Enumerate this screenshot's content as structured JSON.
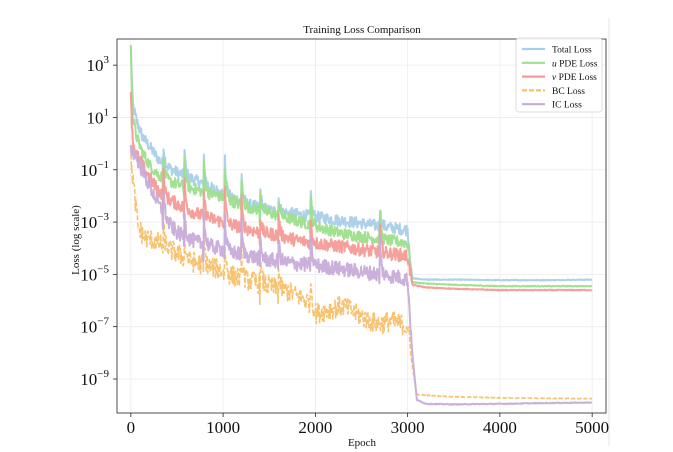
{
  "chart_data": {
    "type": "line",
    "title": "Training Loss Comparison",
    "xlabel": "Epoch",
    "ylabel": "Loss (log scale)",
    "yscale": "log",
    "xlim": [
      -150,
      5150
    ],
    "ylim_log10": [
      -10.3,
      4.0
    ],
    "xticks": [
      0,
      1000,
      2000,
      3000,
      4000,
      5000
    ],
    "xtick_labels": [
      "0",
      "1000",
      "2000",
      "3000",
      "4000",
      "5000"
    ],
    "yticks_log10": [
      3,
      1,
      -1,
      -3,
      -5,
      -7,
      -9
    ],
    "ytick_labels": [
      {
        "base": "10",
        "exp": "3"
      },
      {
        "base": "10",
        "exp": "1"
      },
      {
        "base": "10",
        "exp": "−1"
      },
      {
        "base": "10",
        "exp": "−3"
      },
      {
        "base": "10",
        "exp": "−5"
      },
      {
        "base": "10",
        "exp": "−7"
      },
      {
        "base": "10",
        "exp": "−9"
      }
    ],
    "grid": true,
    "legend_position": "top-right",
    "series": [
      {
        "name": "Total Loss",
        "label_parts": [
          "",
          "Total Loss"
        ],
        "color": "#a9cfe8",
        "dash": false,
        "points_log10": [
          [
            0,
            3.7
          ],
          [
            20,
            1.5
          ],
          [
            60,
            0.9
          ],
          [
            120,
            0.3
          ],
          [
            200,
            -0.1
          ],
          [
            300,
            -0.6
          ],
          [
            400,
            -0.9
          ],
          [
            500,
            -1.1
          ],
          [
            600,
            -1.25
          ],
          [
            700,
            -1.4
          ],
          [
            800,
            -1.55
          ],
          [
            900,
            -1.75
          ],
          [
            1000,
            -1.9
          ],
          [
            1100,
            -2.05
          ],
          [
            1200,
            -2.2
          ],
          [
            1300,
            -2.35
          ],
          [
            1400,
            -2.45
          ],
          [
            1500,
            -2.55
          ],
          [
            1600,
            -2.6
          ],
          [
            1700,
            -2.65
          ],
          [
            1800,
            -2.7
          ],
          [
            1900,
            -2.75
          ],
          [
            2000,
            -2.8
          ],
          [
            2100,
            -2.85
          ],
          [
            2200,
            -2.9
          ],
          [
            2300,
            -2.95
          ],
          [
            2400,
            -3.0
          ],
          [
            2500,
            -3.05
          ],
          [
            2600,
            -3.1
          ],
          [
            2700,
            -3.15
          ],
          [
            2800,
            -3.2
          ],
          [
            2900,
            -3.25
          ],
          [
            3000,
            -3.3
          ],
          [
            3050,
            -5.15
          ],
          [
            3200,
            -5.2
          ],
          [
            3500,
            -5.2
          ],
          [
            4000,
            -5.22
          ],
          [
            4500,
            -5.22
          ],
          [
            5000,
            -5.2
          ]
        ],
        "noise_log10": 0.22,
        "spikes": [
          [
            350,
            1.0
          ],
          [
            580,
            1.1
          ],
          [
            790,
            1.2
          ],
          [
            1020,
            1.3
          ],
          [
            1200,
            1.0
          ],
          [
            1400,
            0.9
          ],
          [
            1600,
            0.6
          ],
          [
            1950,
            0.9
          ],
          [
            2700,
            0.7
          ]
        ]
      },
      {
        "name": "u PDE Loss",
        "label_parts": [
          "u",
          " PDE Loss"
        ],
        "color": "#9ddf8b",
        "dash": false,
        "points_log10": [
          [
            0,
            3.6
          ],
          [
            20,
            1.0
          ],
          [
            60,
            0.3
          ],
          [
            120,
            -0.3
          ],
          [
            200,
            -0.8
          ],
          [
            300,
            -1.2
          ],
          [
            400,
            -1.4
          ],
          [
            500,
            -1.55
          ],
          [
            600,
            -1.65
          ],
          [
            700,
            -1.75
          ],
          [
            800,
            -1.85
          ],
          [
            900,
            -1.95
          ],
          [
            1000,
            -2.05
          ],
          [
            1100,
            -2.2
          ],
          [
            1200,
            -2.35
          ],
          [
            1300,
            -2.45
          ],
          [
            1400,
            -2.55
          ],
          [
            1500,
            -2.65
          ],
          [
            1600,
            -2.75
          ],
          [
            1700,
            -2.85
          ],
          [
            1800,
            -2.95
          ],
          [
            1900,
            -3.05
          ],
          [
            2000,
            -3.15
          ],
          [
            2100,
            -3.25
          ],
          [
            2200,
            -3.35
          ],
          [
            2300,
            -3.45
          ],
          [
            2400,
            -3.5
          ],
          [
            2500,
            -3.55
          ],
          [
            2600,
            -3.6
          ],
          [
            2700,
            -3.65
          ],
          [
            2800,
            -3.7
          ],
          [
            2900,
            -3.75
          ],
          [
            3000,
            -3.8
          ],
          [
            3050,
            -5.3
          ],
          [
            3200,
            -5.35
          ],
          [
            3500,
            -5.4
          ],
          [
            4000,
            -5.45
          ],
          [
            4500,
            -5.45
          ],
          [
            5000,
            -5.45
          ]
        ],
        "noise_log10": 0.22,
        "spikes": [
          [
            350,
            1.2
          ],
          [
            580,
            1.3
          ],
          [
            790,
            1.3
          ],
          [
            1020,
            1.2
          ],
          [
            1200,
            1.1
          ],
          [
            1400,
            1.0
          ],
          [
            1600,
            0.8
          ],
          [
            1950,
            1.0
          ],
          [
            2700,
            0.9
          ]
        ]
      },
      {
        "name": "v PDE Loss",
        "label_parts": [
          "v",
          " PDE Loss"
        ],
        "color": "#f59b96",
        "dash": false,
        "points_log10": [
          [
            0,
            2.0
          ],
          [
            20,
            0.1
          ],
          [
            60,
            -0.4
          ],
          [
            120,
            -0.8
          ],
          [
            200,
            -1.3
          ],
          [
            300,
            -1.8
          ],
          [
            400,
            -2.1
          ],
          [
            500,
            -2.3
          ],
          [
            600,
            -2.5
          ],
          [
            700,
            -2.65
          ],
          [
            800,
            -2.8
          ],
          [
            900,
            -2.9
          ],
          [
            1000,
            -3.0
          ],
          [
            1100,
            -3.1
          ],
          [
            1200,
            -3.2
          ],
          [
            1300,
            -3.3
          ],
          [
            1400,
            -3.4
          ],
          [
            1500,
            -3.45
          ],
          [
            1600,
            -3.5
          ],
          [
            1700,
            -3.6
          ],
          [
            1800,
            -3.7
          ],
          [
            1900,
            -3.75
          ],
          [
            2000,
            -3.8
          ],
          [
            2100,
            -3.85
          ],
          [
            2200,
            -3.9
          ],
          [
            2300,
            -3.95
          ],
          [
            2400,
            -4.0
          ],
          [
            2500,
            -4.05
          ],
          [
            2600,
            -4.1
          ],
          [
            2700,
            -4.15
          ],
          [
            2800,
            -4.2
          ],
          [
            2900,
            -4.25
          ],
          [
            3000,
            -4.3
          ],
          [
            3050,
            -5.4
          ],
          [
            3200,
            -5.5
          ],
          [
            3500,
            -5.55
          ],
          [
            4000,
            -5.6
          ],
          [
            4500,
            -5.6
          ],
          [
            5000,
            -5.6
          ]
        ],
        "noise_log10": 0.25,
        "spikes": [
          [
            350,
            1.1
          ],
          [
            580,
            1.2
          ],
          [
            790,
            1.1
          ],
          [
            1020,
            1.2
          ],
          [
            1200,
            1.0
          ],
          [
            1400,
            0.9
          ],
          [
            1600,
            0.9
          ],
          [
            1950,
            0.9
          ],
          [
            2700,
            1.0
          ]
        ]
      },
      {
        "name": "BC Loss",
        "label_parts": [
          "",
          "BC Loss"
        ],
        "color": "#f7c06a",
        "dash": true,
        "points_log10": [
          [
            0,
            -0.5
          ],
          [
            40,
            -2.0
          ],
          [
            80,
            -3.2
          ],
          [
            150,
            -3.6
          ],
          [
            250,
            -3.7
          ],
          [
            350,
            -3.9
          ],
          [
            450,
            -4.1
          ],
          [
            550,
            -4.3
          ],
          [
            650,
            -4.5
          ],
          [
            750,
            -4.6
          ],
          [
            850,
            -4.7
          ],
          [
            950,
            -4.8
          ],
          [
            1050,
            -5.0
          ],
          [
            1150,
            -5.1
          ],
          [
            1250,
            -5.2
          ],
          [
            1350,
            -5.3
          ],
          [
            1450,
            -5.4
          ],
          [
            1550,
            -5.5
          ],
          [
            1650,
            -5.6
          ],
          [
            1750,
            -5.7
          ],
          [
            1850,
            -5.9
          ],
          [
            1950,
            -6.1
          ],
          [
            2000,
            -6.5
          ],
          [
            2100,
            -6.4
          ],
          [
            2200,
            -6.3
          ],
          [
            2300,
            -6.2
          ],
          [
            2400,
            -6.4
          ],
          [
            2500,
            -6.6
          ],
          [
            2600,
            -6.8
          ],
          [
            2700,
            -6.9
          ],
          [
            2800,
            -6.8
          ],
          [
            2900,
            -6.85
          ],
          [
            3000,
            -7.0
          ],
          [
            3050,
            -8.5
          ],
          [
            3100,
            -9.6
          ],
          [
            3200,
            -9.62
          ],
          [
            3500,
            -9.68
          ],
          [
            4000,
            -9.72
          ],
          [
            4500,
            -9.74
          ],
          [
            5000,
            -9.75
          ]
        ],
        "noise_log10": 0.4,
        "spikes": [
          [
            350,
            0.9
          ],
          [
            580,
            1.0
          ],
          [
            790,
            1.2
          ],
          [
            1020,
            1.1
          ],
          [
            1200,
            1.0
          ],
          [
            1400,
            1.1
          ],
          [
            1600,
            0.9
          ],
          [
            1950,
            1.0
          ]
        ]
      },
      {
        "name": "IC Loss",
        "label_parts": [
          "",
          "IC Loss"
        ],
        "color": "#c8acd9",
        "dash": false,
        "points_log10": [
          [
            0,
            -0.2
          ],
          [
            60,
            -0.5
          ],
          [
            120,
            -1.0
          ],
          [
            200,
            -1.6
          ],
          [
            300,
            -2.3
          ],
          [
            400,
            -3.0
          ],
          [
            500,
            -3.4
          ],
          [
            600,
            -3.6
          ],
          [
            700,
            -3.75
          ],
          [
            800,
            -3.85
          ],
          [
            900,
            -3.95
          ],
          [
            1000,
            -4.05
          ],
          [
            1100,
            -4.15
          ],
          [
            1200,
            -4.25
          ],
          [
            1300,
            -4.3
          ],
          [
            1400,
            -4.4
          ],
          [
            1500,
            -4.45
          ],
          [
            1600,
            -4.5
          ],
          [
            1700,
            -4.55
          ],
          [
            1800,
            -4.6
          ],
          [
            1900,
            -4.62
          ],
          [
            2000,
            -4.65
          ],
          [
            2100,
            -4.7
          ],
          [
            2200,
            -4.75
          ],
          [
            2300,
            -4.8
          ],
          [
            2400,
            -4.85
          ],
          [
            2500,
            -4.9
          ],
          [
            2600,
            -4.95
          ],
          [
            2700,
            -5.0
          ],
          [
            2800,
            -5.05
          ],
          [
            2900,
            -5.1
          ],
          [
            3000,
            -5.2
          ],
          [
            3050,
            -8.0
          ],
          [
            3100,
            -9.8
          ],
          [
            3200,
            -9.95
          ],
          [
            3500,
            -9.97
          ],
          [
            4000,
            -9.95
          ],
          [
            4500,
            -9.92
          ],
          [
            5000,
            -9.9
          ]
        ],
        "noise_log10": 0.28,
        "spikes": [
          [
            350,
            1.2
          ],
          [
            580,
            1.3
          ],
          [
            790,
            1.4
          ],
          [
            1020,
            1.3
          ],
          [
            1200,
            1.2
          ],
          [
            1400,
            1.1
          ],
          [
            1600,
            1.0
          ],
          [
            1950,
            1.2
          ],
          [
            2700,
            1.3
          ]
        ]
      }
    ]
  }
}
